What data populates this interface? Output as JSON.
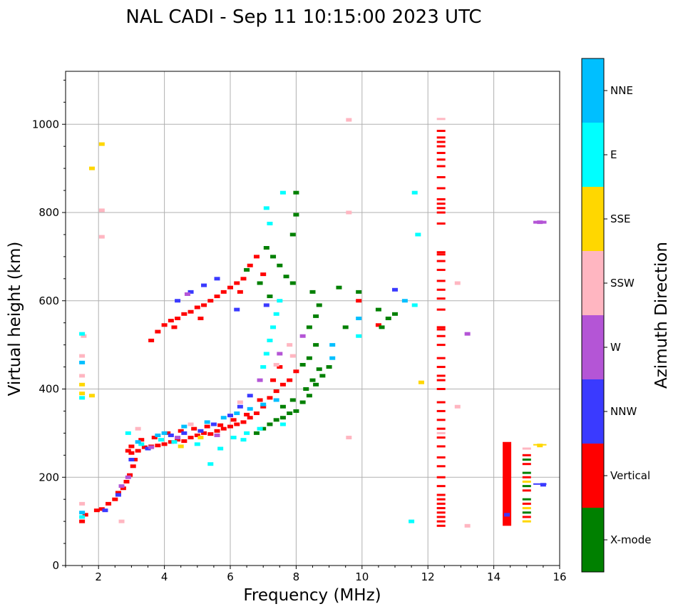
{
  "chart_data": {
    "type": "scatter",
    "title": "NAL CADI - Sep 11 10:15:00 2023 UTC",
    "xlabel": "Frequency (MHz)",
    "ylabel": "Virtual height (km)",
    "xlim": [
      1,
      16
    ],
    "ylim": [
      0,
      1120
    ],
    "xticks": [
      2,
      4,
      6,
      8,
      10,
      12,
      14,
      16
    ],
    "xtick_labels": [
      "2",
      "4",
      "6",
      "8",
      "10",
      "12",
      "14",
      "16"
    ],
    "yticks": [
      0,
      200,
      400,
      600,
      800,
      1000
    ],
    "ytick_labels": [
      "0",
      "200",
      "400",
      "600",
      "800",
      "1000"
    ],
    "grid": true,
    "colorbar": {
      "label": "Azimuth Direction",
      "categories": [
        "X-mode",
        "Vertical",
        "NNW",
        "W",
        "SSW",
        "SSE",
        "E",
        "NNE"
      ],
      "colors": [
        "#008000",
        "#ff0000",
        "#3a3aff",
        "#b455d6",
        "#ffb6c1",
        "#ffd700",
        "#00ffff",
        "#00bfff"
      ]
    },
    "series": [
      {
        "name": "Vertical",
        "points": [
          [
            1.5,
            100
          ],
          [
            1.6,
            115
          ],
          [
            1.95,
            125
          ],
          [
            2.1,
            128
          ],
          [
            2.3,
            140
          ],
          [
            2.5,
            150
          ],
          [
            2.6,
            165
          ],
          [
            2.75,
            175
          ],
          [
            2.85,
            190
          ],
          [
            2.95,
            205
          ],
          [
            3.05,
            225
          ],
          [
            3.1,
            240
          ],
          [
            2.9,
            260
          ],
          [
            3.0,
            270
          ],
          [
            3.2,
            260
          ],
          [
            3.4,
            268
          ],
          [
            3.6,
            270
          ],
          [
            3.8,
            272
          ],
          [
            4.0,
            275
          ],
          [
            4.2,
            280
          ],
          [
            4.4,
            285
          ],
          [
            4.6,
            282
          ],
          [
            4.8,
            290
          ],
          [
            5.0,
            295
          ],
          [
            5.2,
            300
          ],
          [
            5.4,
            298
          ],
          [
            5.6,
            305
          ],
          [
            5.8,
            310
          ],
          [
            6.0,
            315
          ],
          [
            6.2,
            320
          ],
          [
            6.4,
            325
          ],
          [
            6.6,
            335
          ],
          [
            6.8,
            345
          ],
          [
            7.0,
            360
          ],
          [
            7.2,
            380
          ],
          [
            7.4,
            395
          ],
          [
            7.6,
            410
          ],
          [
            7.8,
            420
          ],
          [
            8.0,
            440
          ],
          [
            3.6,
            510
          ],
          [
            3.8,
            530
          ],
          [
            4.0,
            545
          ],
          [
            4.2,
            555
          ],
          [
            4.4,
            560
          ],
          [
            4.6,
            570
          ],
          [
            4.8,
            575
          ],
          [
            5.0,
            585
          ],
          [
            5.2,
            590
          ],
          [
            5.4,
            600
          ],
          [
            5.6,
            610
          ],
          [
            5.8,
            620
          ],
          [
            6.0,
            630
          ],
          [
            6.2,
            640
          ],
          [
            6.4,
            650
          ],
          [
            3.0,
            255
          ],
          [
            3.3,
            285
          ],
          [
            3.7,
            290
          ],
          [
            4.1,
            300
          ],
          [
            4.5,
            305
          ],
          [
            4.9,
            310
          ],
          [
            5.3,
            315
          ],
          [
            5.7,
            318
          ],
          [
            6.1,
            330
          ],
          [
            6.5,
            342
          ],
          [
            6.9,
            375
          ],
          [
            7.3,
            420
          ],
          [
            7.5,
            450
          ],
          [
            6.6,
            680
          ],
          [
            6.8,
            700
          ],
          [
            7.0,
            660
          ],
          [
            6.3,
            620
          ],
          [
            5.1,
            560
          ],
          [
            4.3,
            540
          ],
          [
            9.9,
            600
          ],
          [
            10.5,
            545
          ],
          [
            12.4,
            90
          ],
          [
            12.4,
            100
          ],
          [
            12.4,
            110
          ],
          [
            12.4,
            120
          ],
          [
            12.4,
            130
          ],
          [
            12.4,
            140
          ],
          [
            12.4,
            150
          ],
          [
            12.4,
            160
          ],
          [
            12.4,
            180
          ],
          [
            12.4,
            200
          ],
          [
            12.4,
            225
          ],
          [
            12.4,
            245
          ],
          [
            12.4,
            270
          ],
          [
            12.4,
            290
          ],
          [
            12.4,
            310
          ],
          [
            12.4,
            330
          ],
          [
            12.4,
            350
          ],
          [
            12.4,
            370
          ],
          [
            12.4,
            400
          ],
          [
            12.4,
            420
          ],
          [
            12.4,
            430
          ],
          [
            12.4,
            450
          ],
          [
            12.4,
            470
          ],
          [
            12.4,
            500
          ],
          [
            12.4,
            520
          ],
          [
            12.4,
            535
          ],
          [
            12.4,
            540
          ],
          [
            12.4,
            580
          ],
          [
            12.4,
            605
          ],
          [
            12.4,
            625
          ],
          [
            12.4,
            645
          ],
          [
            12.4,
            670
          ],
          [
            12.4,
            690
          ],
          [
            12.4,
            705
          ],
          [
            12.4,
            710
          ],
          [
            12.4,
            775
          ],
          [
            12.4,
            800
          ],
          [
            12.4,
            810
          ],
          [
            12.4,
            820
          ],
          [
            12.4,
            830
          ],
          [
            12.4,
            855
          ],
          [
            12.4,
            880
          ],
          [
            12.4,
            905
          ],
          [
            12.4,
            920
          ],
          [
            12.4,
            935
          ],
          [
            12.4,
            950
          ],
          [
            12.4,
            960
          ],
          [
            12.4,
            970
          ],
          [
            12.4,
            985
          ],
          [
            15.0,
            110
          ],
          [
            15.0,
            140
          ],
          [
            15.0,
            170
          ],
          [
            15.0,
            200
          ],
          [
            15.0,
            230
          ],
          [
            15.0,
            250
          ]
        ]
      },
      {
        "name": "X-mode",
        "points": [
          [
            6.8,
            300
          ],
          [
            7.0,
            310
          ],
          [
            7.2,
            320
          ],
          [
            7.4,
            330
          ],
          [
            7.6,
            335
          ],
          [
            7.8,
            345
          ],
          [
            8.0,
            350
          ],
          [
            8.2,
            370
          ],
          [
            8.4,
            385
          ],
          [
            8.6,
            410
          ],
          [
            8.8,
            430
          ],
          [
            9.0,
            450
          ],
          [
            7.6,
            360
          ],
          [
            7.9,
            375
          ],
          [
            8.3,
            400
          ],
          [
            8.5,
            420
          ],
          [
            8.7,
            445
          ],
          [
            8.2,
            455
          ],
          [
            8.4,
            470
          ],
          [
            8.6,
            500
          ],
          [
            8.4,
            540
          ],
          [
            8.6,
            565
          ],
          [
            8.7,
            590
          ],
          [
            8.5,
            620
          ],
          [
            7.9,
            640
          ],
          [
            7.7,
            655
          ],
          [
            7.5,
            680
          ],
          [
            7.3,
            700
          ],
          [
            7.1,
            720
          ],
          [
            7.9,
            750
          ],
          [
            8.0,
            795
          ],
          [
            8.0,
            845
          ],
          [
            6.5,
            670
          ],
          [
            6.9,
            640
          ],
          [
            7.2,
            610
          ],
          [
            9.5,
            540
          ],
          [
            9.9,
            620
          ],
          [
            10.6,
            540
          ],
          [
            10.8,
            560
          ],
          [
            11.0,
            570
          ],
          [
            10.5,
            580
          ],
          [
            9.3,
            630
          ],
          [
            15.0,
            120
          ],
          [
            15.0,
            150
          ],
          [
            15.0,
            180
          ],
          [
            15.0,
            210
          ],
          [
            15.0,
            240
          ]
        ]
      },
      {
        "name": "NNW",
        "points": [
          [
            2.2,
            125
          ],
          [
            2.6,
            160
          ],
          [
            3.0,
            240
          ],
          [
            3.5,
            265
          ],
          [
            4.2,
            295
          ],
          [
            4.6,
            300
          ],
          [
            5.1,
            305
          ],
          [
            5.5,
            320
          ],
          [
            6.0,
            340
          ],
          [
            6.3,
            360
          ],
          [
            6.6,
            385
          ],
          [
            4.8,
            620
          ],
          [
            5.2,
            635
          ],
          [
            5.6,
            650
          ],
          [
            4.4,
            600
          ],
          [
            11.0,
            625
          ],
          [
            15.5,
            183
          ],
          [
            14.4,
            115
          ],
          [
            7.1,
            590
          ],
          [
            6.2,
            580
          ]
        ]
      },
      {
        "name": "W",
        "points": [
          [
            2.7,
            180
          ],
          [
            2.9,
            200
          ],
          [
            3.6,
            268
          ],
          [
            4.4,
            290
          ],
          [
            5.6,
            295
          ],
          [
            13.2,
            525
          ],
          [
            15.4,
            778
          ],
          [
            7.5,
            480
          ],
          [
            6.9,
            420
          ],
          [
            4.7,
            615
          ],
          [
            8.2,
            520
          ]
        ]
      },
      {
        "name": "SSW",
        "points": [
          [
            1.5,
            140
          ],
          [
            1.5,
            430
          ],
          [
            1.5,
            475
          ],
          [
            1.55,
            520
          ],
          [
            2.7,
            100
          ],
          [
            3.2,
            310
          ],
          [
            4.8,
            320
          ],
          [
            6.3,
            370
          ],
          [
            7.4,
            455
          ],
          [
            7.9,
            475
          ],
          [
            9.6,
            290
          ],
          [
            9.6,
            800
          ],
          [
            9.6,
            1010
          ],
          [
            12.4,
            300
          ],
          [
            12.4,
            1012
          ],
          [
            12.9,
            360
          ],
          [
            12.9,
            640
          ],
          [
            13.2,
            90
          ],
          [
            15.0,
            265
          ],
          [
            2.1,
            745
          ],
          [
            2.1,
            805
          ],
          [
            7.8,
            500
          ]
        ]
      },
      {
        "name": "SSE",
        "points": [
          [
            1.5,
            410
          ],
          [
            1.5,
            390
          ],
          [
            1.8,
            385
          ],
          [
            2.1,
            955
          ],
          [
            1.8,
            900
          ],
          [
            4.5,
            270
          ],
          [
            5.1,
            290
          ],
          [
            11.8,
            415
          ],
          [
            15.4,
            272
          ],
          [
            15.0,
            100
          ],
          [
            15.0,
            190
          ],
          [
            15.0,
            130
          ]
        ]
      },
      {
        "name": "E",
        "points": [
          [
            1.5,
            110
          ],
          [
            1.5,
            380
          ],
          [
            1.5,
            525
          ],
          [
            2.9,
            300
          ],
          [
            3.3,
            275
          ],
          [
            3.9,
            285
          ],
          [
            4.3,
            280
          ],
          [
            5.0,
            275
          ],
          [
            5.7,
            265
          ],
          [
            6.1,
            290
          ],
          [
            6.5,
            300
          ],
          [
            6.9,
            310
          ],
          [
            7.0,
            450
          ],
          [
            7.1,
            480
          ],
          [
            7.2,
            510
          ],
          [
            7.3,
            540
          ],
          [
            7.4,
            570
          ],
          [
            7.5,
            600
          ],
          [
            7.2,
            775
          ],
          [
            7.1,
            810
          ],
          [
            7.6,
            845
          ],
          [
            9.9,
            520
          ],
          [
            11.5,
            100
          ],
          [
            11.6,
            590
          ],
          [
            11.7,
            750
          ],
          [
            11.6,
            845
          ],
          [
            5.4,
            230
          ],
          [
            6.4,
            285
          ],
          [
            7.6,
            320
          ]
        ]
      },
      {
        "name": "NNE",
        "points": [
          [
            1.5,
            120
          ],
          [
            1.5,
            460
          ],
          [
            3.2,
            280
          ],
          [
            4.0,
            300
          ],
          [
            4.6,
            315
          ],
          [
            5.3,
            325
          ],
          [
            5.8,
            335
          ],
          [
            6.2,
            345
          ],
          [
            6.6,
            355
          ],
          [
            7.0,
            365
          ],
          [
            7.4,
            375
          ],
          [
            9.1,
            470
          ],
          [
            9.1,
            500
          ],
          [
            9.9,
            560
          ],
          [
            11.3,
            600
          ],
          [
            3.8,
            295
          ]
        ]
      }
    ],
    "vertical_bands": [
      {
        "name": "Vertical",
        "x": 14.4,
        "y_range": [
          90,
          280
        ]
      }
    ],
    "horizontal_segments": [
      {
        "name": "W",
        "x_range": [
          15.2,
          15.6
        ],
        "y": 778
      },
      {
        "name": "SSE",
        "x_range": [
          15.2,
          15.6
        ],
        "y": 272
      },
      {
        "name": "NNW",
        "x_range": [
          15.2,
          15.6
        ],
        "y": 183
      }
    ]
  }
}
